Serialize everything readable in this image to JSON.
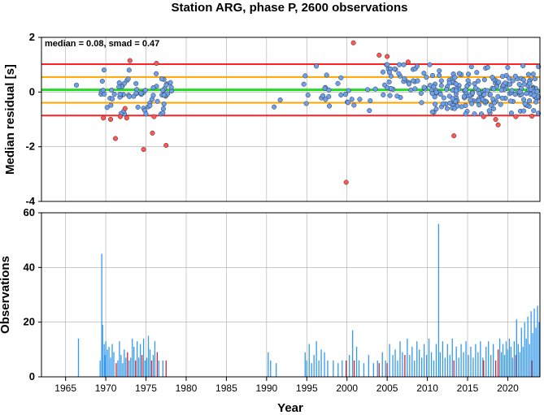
{
  "chart_data": [
    {
      "type": "scatter",
      "title": "Station ARG, phase P, 2600 observations",
      "xlabel": "",
      "ylabel": "Median residual [s]",
      "annotation": "median = 0.08, smad = 0.47",
      "xlim": [
        1962,
        2024
      ],
      "ylim": [
        -4,
        2
      ],
      "yticks": [
        "-4",
        "-2",
        "0",
        "2"
      ],
      "reference_lines": [
        {
          "value": 0.08,
          "color": "#22dd22"
        },
        {
          "value": 0.55,
          "color": "#ffa500"
        },
        {
          "value": -0.39,
          "color": "#ffa500"
        },
        {
          "value": 1.02,
          "color": "#ff2222"
        },
        {
          "value": -0.86,
          "color": "#ff2222"
        }
      ],
      "colors": {
        "normal": "#6aa0ee",
        "outlier": "#ff5555",
        "edge": "#333333"
      },
      "outliers": [
        [
          1969.7,
          -0.95
        ],
        [
          1970.6,
          -1.0
        ],
        [
          1971.2,
          -1.7
        ],
        [
          1971.8,
          -0.9
        ],
        [
          1972.4,
          -0.6
        ],
        [
          1972.6,
          -0.95
        ],
        [
          1973.0,
          1.15
        ],
        [
          1974.7,
          -2.1
        ],
        [
          1975.8,
          -1.5
        ],
        [
          1976.3,
          1.05
        ],
        [
          1977.5,
          -1.95
        ],
        [
          1976.0,
          -0.9
        ],
        [
          1999.9,
          -3.3
        ],
        [
          2000.8,
          1.8
        ],
        [
          2004.0,
          1.35
        ],
        [
          2005.0,
          1.3
        ],
        [
          2007.6,
          1.1
        ],
        [
          2013.3,
          -1.6
        ],
        [
          2017.0,
          -0.9
        ],
        [
          2018.5,
          -1.0
        ],
        [
          2018.8,
          -1.2
        ],
        [
          2021.0,
          -0.9
        ],
        [
          2023.0,
          -0.88
        ]
      ]
    },
    {
      "type": "bar",
      "xlabel": "Year",
      "ylabel": "Observations",
      "xlim": [
        1962,
        2024
      ],
      "ylim": [
        0,
        60
      ],
      "yticks": [
        "0",
        "20",
        "40",
        "60"
      ],
      "xticks": [
        "1965",
        "1970",
        "1975",
        "1980",
        "1985",
        "1990",
        "1995",
        "2000",
        "2005",
        "2010",
        "2015",
        "2020"
      ],
      "colors": {
        "normal": "#3399ee",
        "outlier": "#cc2233"
      },
      "bars": [
        [
          1966.6,
          14,
          "n"
        ],
        [
          1969.3,
          6,
          "n"
        ],
        [
          1969.5,
          45,
          "n"
        ],
        [
          1969.6,
          19,
          "n"
        ],
        [
          1969.8,
          12,
          "n"
        ],
        [
          1969.9,
          8,
          "n"
        ],
        [
          1970.0,
          13,
          "n"
        ],
        [
          1970.2,
          10,
          "n"
        ],
        [
          1970.4,
          11,
          "n"
        ],
        [
          1970.6,
          7,
          "n"
        ],
        [
          1970.8,
          12,
          "n"
        ],
        [
          1971.0,
          9,
          "n"
        ],
        [
          1971.3,
          5,
          "o"
        ],
        [
          1971.5,
          6,
          "n"
        ],
        [
          1971.7,
          13,
          "n"
        ],
        [
          1971.9,
          8,
          "n"
        ],
        [
          1972.1,
          5,
          "n"
        ],
        [
          1972.3,
          10,
          "n"
        ],
        [
          1972.5,
          7,
          "n"
        ],
        [
          1972.7,
          9,
          "o"
        ],
        [
          1972.9,
          6,
          "n"
        ],
        [
          1973.1,
          7,
          "n"
        ],
        [
          1973.3,
          14,
          "n"
        ],
        [
          1973.5,
          11,
          "n"
        ],
        [
          1973.7,
          6,
          "o"
        ],
        [
          1973.9,
          13,
          "n"
        ],
        [
          1974.1,
          7,
          "n"
        ],
        [
          1974.3,
          12,
          "n"
        ],
        [
          1974.5,
          8,
          "o"
        ],
        [
          1974.7,
          14,
          "n"
        ],
        [
          1974.9,
          6,
          "n"
        ],
        [
          1975.1,
          7,
          "n"
        ],
        [
          1975.3,
          15,
          "n"
        ],
        [
          1975.5,
          10,
          "n"
        ],
        [
          1975.7,
          6,
          "o"
        ],
        [
          1975.9,
          8,
          "n"
        ],
        [
          1976.1,
          13,
          "n"
        ],
        [
          1976.4,
          9,
          "o"
        ],
        [
          1976.6,
          6,
          "n"
        ],
        [
          1977.1,
          6,
          "n"
        ],
        [
          1977.5,
          6,
          "o"
        ],
        [
          1990.2,
          9,
          "n"
        ],
        [
          1990.5,
          6,
          "n"
        ],
        [
          1991.2,
          5,
          "n"
        ],
        [
          1994.8,
          9,
          "n"
        ],
        [
          1995.0,
          6,
          "n"
        ],
        [
          1995.3,
          12,
          "n"
        ],
        [
          1995.6,
          5,
          "n"
        ],
        [
          1995.9,
          8,
          "n"
        ],
        [
          1996.2,
          13,
          "n"
        ],
        [
          1996.5,
          6,
          "n"
        ],
        [
          1996.8,
          10,
          "n"
        ],
        [
          1997.2,
          9,
          "n"
        ],
        [
          1997.6,
          6,
          "n"
        ],
        [
          1998.3,
          6,
          "n"
        ],
        [
          1998.9,
          5,
          "n"
        ],
        [
          1999.4,
          6,
          "n"
        ],
        [
          1999.9,
          6,
          "o"
        ],
        [
          2000.3,
          8,
          "n"
        ],
        [
          2000.7,
          17,
          "n"
        ],
        [
          2000.9,
          6,
          "o"
        ],
        [
          2001.2,
          11,
          "n"
        ],
        [
          2001.5,
          6,
          "n"
        ],
        [
          2002.1,
          5,
          "n"
        ],
        [
          2002.7,
          8,
          "n"
        ],
        [
          2003.3,
          5,
          "n"
        ],
        [
          2003.8,
          6,
          "n"
        ],
        [
          2004.0,
          5,
          "o"
        ],
        [
          2004.4,
          9,
          "n"
        ],
        [
          2004.8,
          6,
          "n"
        ],
        [
          2005.0,
          5,
          "o"
        ],
        [
          2005.3,
          12,
          "n"
        ],
        [
          2005.7,
          8,
          "n"
        ],
        [
          2006.0,
          10,
          "n"
        ],
        [
          2006.3,
          6,
          "n"
        ],
        [
          2006.6,
          13,
          "n"
        ],
        [
          2006.9,
          9,
          "n"
        ],
        [
          2007.2,
          8,
          "o"
        ],
        [
          2007.5,
          14,
          "n"
        ],
        [
          2007.8,
          8,
          "n"
        ],
        [
          2008.1,
          11,
          "n"
        ],
        [
          2008.4,
          6,
          "n"
        ],
        [
          2008.7,
          13,
          "n"
        ],
        [
          2009.0,
          10,
          "n"
        ],
        [
          2009.3,
          7,
          "n"
        ],
        [
          2009.6,
          12,
          "n"
        ],
        [
          2009.9,
          8,
          "n"
        ],
        [
          2010.2,
          14,
          "n"
        ],
        [
          2010.5,
          9,
          "n"
        ],
        [
          2010.8,
          6,
          "n"
        ],
        [
          2011.1,
          12,
          "n"
        ],
        [
          2011.4,
          56,
          "n"
        ],
        [
          2011.6,
          9,
          "n"
        ],
        [
          2011.9,
          13,
          "n"
        ],
        [
          2012.2,
          7,
          "n"
        ],
        [
          2012.5,
          12,
          "n"
        ],
        [
          2012.8,
          8,
          "n"
        ],
        [
          2013.1,
          14,
          "n"
        ],
        [
          2013.3,
          6,
          "o"
        ],
        [
          2013.6,
          11,
          "n"
        ],
        [
          2013.9,
          7,
          "n"
        ],
        [
          2014.2,
          12,
          "n"
        ],
        [
          2014.5,
          9,
          "n"
        ],
        [
          2014.8,
          13,
          "n"
        ],
        [
          2015.1,
          8,
          "n"
        ],
        [
          2015.4,
          11,
          "n"
        ],
        [
          2015.7,
          7,
          "n"
        ],
        [
          2016.0,
          12,
          "n"
        ],
        [
          2016.3,
          9,
          "n"
        ],
        [
          2016.6,
          13,
          "n"
        ],
        [
          2016.9,
          7,
          "n"
        ],
        [
          2017.0,
          6,
          "o"
        ],
        [
          2017.3,
          11,
          "n"
        ],
        [
          2017.6,
          13,
          "n"
        ],
        [
          2017.9,
          8,
          "n"
        ],
        [
          2018.2,
          12,
          "n"
        ],
        [
          2018.5,
          6,
          "o"
        ],
        [
          2018.8,
          10,
          "o"
        ],
        [
          2019.0,
          14,
          "n"
        ],
        [
          2019.2,
          9,
          "n"
        ],
        [
          2019.4,
          12,
          "n"
        ],
        [
          2019.6,
          8,
          "n"
        ],
        [
          2019.8,
          13,
          "n"
        ],
        [
          2020.0,
          10,
          "n"
        ],
        [
          2020.2,
          14,
          "n"
        ],
        [
          2020.4,
          11,
          "n"
        ],
        [
          2020.6,
          7,
          "n"
        ],
        [
          2020.8,
          13,
          "n"
        ],
        [
          2021.0,
          8,
          "o"
        ],
        [
          2021.1,
          21,
          "n"
        ],
        [
          2021.3,
          12,
          "n"
        ],
        [
          2021.5,
          9,
          "n"
        ],
        [
          2021.7,
          18,
          "n"
        ],
        [
          2021.9,
          11,
          "n"
        ],
        [
          2022.1,
          20,
          "n"
        ],
        [
          2022.3,
          14,
          "n"
        ],
        [
          2022.5,
          22,
          "n"
        ],
        [
          2022.7,
          12,
          "n"
        ],
        [
          2022.9,
          24,
          "n"
        ],
        [
          2023.0,
          6,
          "o"
        ],
        [
          2023.1,
          16,
          "n"
        ],
        [
          2023.3,
          25,
          "n"
        ],
        [
          2023.5,
          18,
          "n"
        ],
        [
          2023.7,
          26,
          "n"
        ],
        [
          2023.9,
          20,
          "n"
        ]
      ]
    }
  ]
}
